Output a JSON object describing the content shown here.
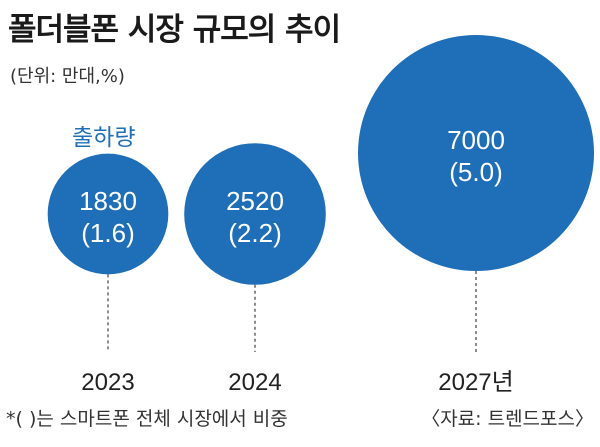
{
  "title": "폴더블폰 시장 규모의 추이",
  "unit_note": "(단위: 만대,%)",
  "footnote": "*(   )는 스마트폰 전체 시장에서 비중",
  "source": "〈자료: 트렌드포스〉",
  "colors": {
    "bubble": "#1f6fb8",
    "bubble_text": "#ffffff",
    "accent_text": "#1f6fb8",
    "leader": "#666666"
  },
  "chart_data": {
    "type": "bubble",
    "series": [
      {
        "name": "출하량",
        "values": [
          1830,
          2520,
          7000
        ],
        "share_percent": [
          1.6,
          2.2,
          5.0
        ]
      }
    ],
    "categories": [
      "2023",
      "2024",
      "2027년"
    ],
    "value_labels": [
      "1830",
      "2520",
      "7000"
    ],
    "share_labels": [
      "(1.6)",
      "(2.2)",
      "(5.0)"
    ]
  }
}
